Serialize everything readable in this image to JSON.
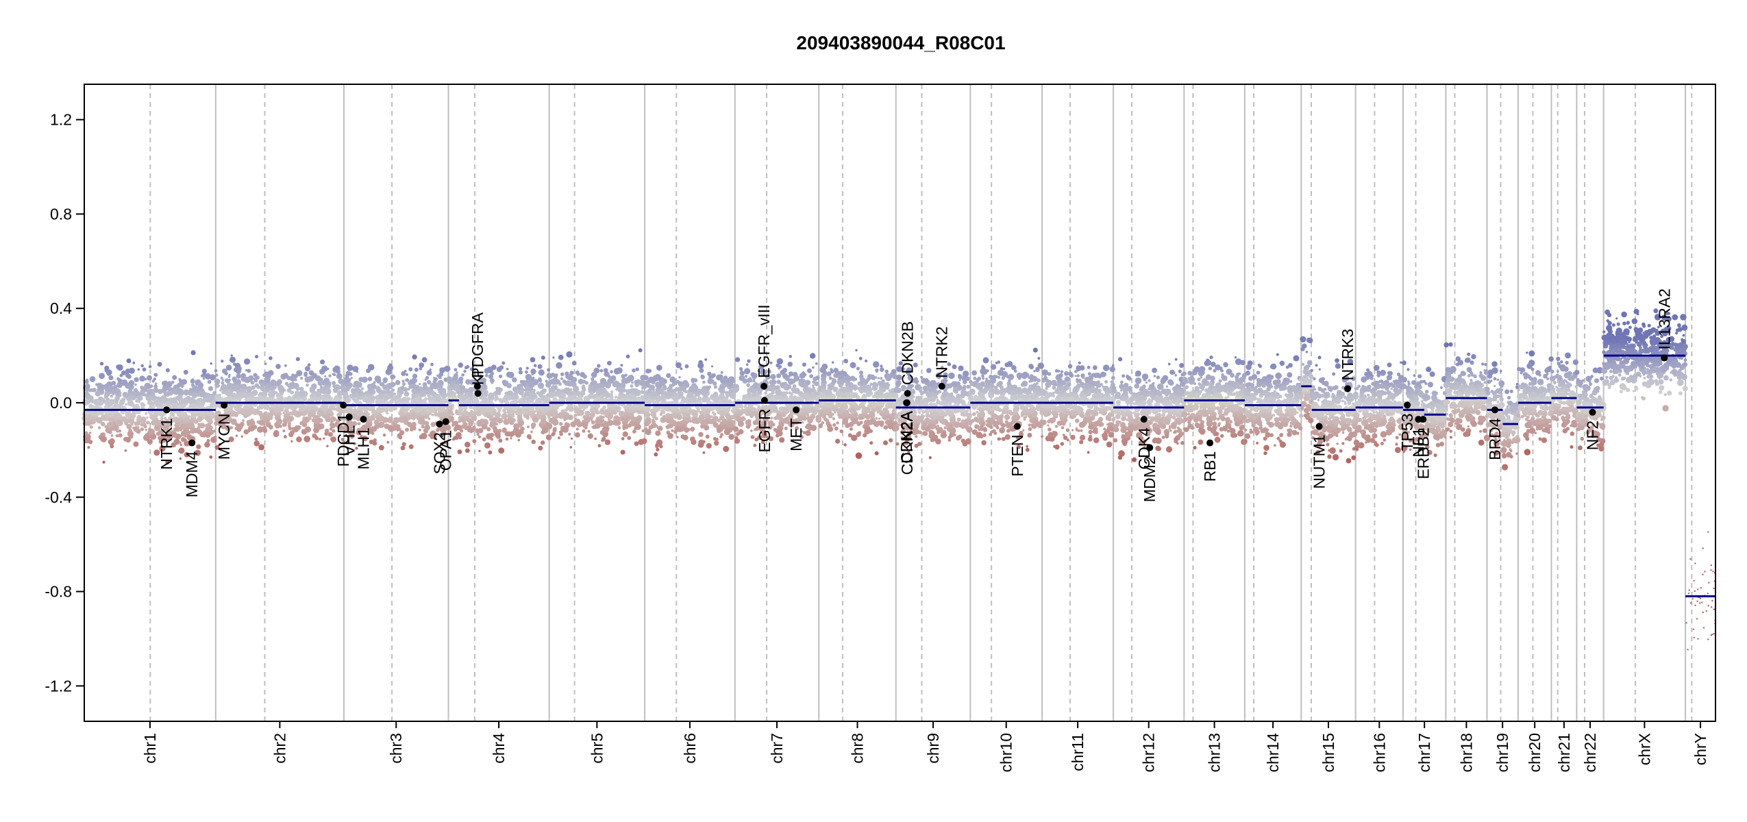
{
  "chart_data": {
    "type": "scatter",
    "title": "209403890044_R08C01",
    "xlabel": "",
    "ylabel": "",
    "ylim": [
      -1.35,
      1.35
    ],
    "y_ticks": [
      -1.2,
      -0.8,
      -0.4,
      0.0,
      0.4,
      0.8,
      1.2
    ],
    "y_tick_labels": [
      "-1.2",
      "-0.8",
      "-0.4",
      "0.0",
      "0.4",
      "0.8",
      "1.2"
    ],
    "colors": {
      "gain": "#6F75B5",
      "loss": "#B0605C",
      "neutral": "#D2D2D2",
      "segment": "#00008B",
      "gene_point": "#000000",
      "chrom_boundary": "#BEBEBE",
      "centromere": "#BEBEBE"
    },
    "chromosomes": [
      {
        "name": "chr1",
        "length": 249,
        "centromere": 125
      },
      {
        "name": "chr2",
        "length": 243,
        "centromere": 93
      },
      {
        "name": "chr3",
        "length": 198,
        "centromere": 91
      },
      {
        "name": "chr4",
        "length": 191,
        "centromere": 50
      },
      {
        "name": "chr5",
        "length": 181,
        "centromere": 48
      },
      {
        "name": "chr6",
        "length": 171,
        "centromere": 60
      },
      {
        "name": "chr7",
        "length": 159,
        "centromere": 60
      },
      {
        "name": "chr8",
        "length": 146,
        "centromere": 45
      },
      {
        "name": "chr9",
        "length": 141,
        "centromere": 49
      },
      {
        "name": "chr10",
        "length": 136,
        "centromere": 40
      },
      {
        "name": "chr11",
        "length": 135,
        "centromere": 53
      },
      {
        "name": "chr12",
        "length": 134,
        "centromere": 35
      },
      {
        "name": "chr13",
        "length": 115,
        "centromere": 17
      },
      {
        "name": "chr14",
        "length": 107,
        "centromere": 17
      },
      {
        "name": "chr15",
        "length": 103,
        "centromere": 19
      },
      {
        "name": "chr16",
        "length": 90,
        "centromere": 36
      },
      {
        "name": "chr17",
        "length": 81,
        "centromere": 24
      },
      {
        "name": "chr18",
        "length": 78,
        "centromere": 17
      },
      {
        "name": "chr19",
        "length": 59,
        "centromere": 26
      },
      {
        "name": "chr20",
        "length": 63,
        "centromere": 28
      },
      {
        "name": "chr21",
        "length": 48,
        "centromere": 12
      },
      {
        "name": "chr22",
        "length": 51,
        "centromere": 15
      },
      {
        "name": "chrX",
        "length": 155,
        "centromere": 60
      },
      {
        "name": "chrY",
        "length": 57,
        "centromere": 12
      }
    ],
    "segments": [
      {
        "chr": "chr1",
        "start": 0,
        "end": 249,
        "value": -0.03
      },
      {
        "chr": "chr2",
        "start": 0,
        "end": 243,
        "value": 0.0
      },
      {
        "chr": "chr3",
        "start": 0,
        "end": 198,
        "value": -0.01
      },
      {
        "chr": "chr4",
        "start": 0,
        "end": 20,
        "value": 0.01
      },
      {
        "chr": "chr4",
        "start": 20,
        "end": 191,
        "value": -0.01
      },
      {
        "chr": "chr5",
        "start": 0,
        "end": 181,
        "value": 0.0
      },
      {
        "chr": "chr6",
        "start": 0,
        "end": 171,
        "value": -0.01
      },
      {
        "chr": "chr7",
        "start": 0,
        "end": 159,
        "value": 0.0
      },
      {
        "chr": "chr8",
        "start": 0,
        "end": 146,
        "value": 0.01
      },
      {
        "chr": "chr9",
        "start": 0,
        "end": 141,
        "value": -0.02
      },
      {
        "chr": "chr10",
        "start": 0,
        "end": 136,
        "value": 0.0
      },
      {
        "chr": "chr11",
        "start": 0,
        "end": 135,
        "value": 0.0
      },
      {
        "chr": "chr12",
        "start": 0,
        "end": 134,
        "value": -0.02
      },
      {
        "chr": "chr13",
        "start": 0,
        "end": 115,
        "value": 0.01
      },
      {
        "chr": "chr14",
        "start": 0,
        "end": 107,
        "value": -0.01
      },
      {
        "chr": "chr15",
        "start": 0,
        "end": 20,
        "value": 0.07
      },
      {
        "chr": "chr15",
        "start": 20,
        "end": 103,
        "value": -0.03
      },
      {
        "chr": "chr16",
        "start": 0,
        "end": 90,
        "value": -0.02
      },
      {
        "chr": "chr17",
        "start": 0,
        "end": 40,
        "value": -0.03
      },
      {
        "chr": "chr17",
        "start": 40,
        "end": 81,
        "value": -0.05
      },
      {
        "chr": "chr18",
        "start": 0,
        "end": 78,
        "value": 0.02
      },
      {
        "chr": "chr19",
        "start": 0,
        "end": 30,
        "value": -0.03
      },
      {
        "chr": "chr19",
        "start": 30,
        "end": 59,
        "value": -0.09
      },
      {
        "chr": "chr20",
        "start": 0,
        "end": 63,
        "value": 0.0
      },
      {
        "chr": "chr21",
        "start": 0,
        "end": 48,
        "value": 0.02
      },
      {
        "chr": "chr22",
        "start": 0,
        "end": 51,
        "value": -0.02
      },
      {
        "chr": "chrX",
        "start": 0,
        "end": 155,
        "value": 0.2
      },
      {
        "chr": "chrY",
        "start": 0,
        "end": 57,
        "value": -0.82
      }
    ],
    "genes": [
      {
        "name": "NTRK1",
        "chr": "chr1",
        "pos": 156,
        "value": -0.03
      },
      {
        "name": "MDM4",
        "chr": "chr1",
        "pos": 204,
        "value": -0.17
      },
      {
        "name": "MYCN",
        "chr": "chr2",
        "pos": 16,
        "value": -0.01
      },
      {
        "name": "PDCD1",
        "chr": "chr2",
        "pos": 242,
        "value": -0.01
      },
      {
        "name": "VHL",
        "chr": "chr3",
        "pos": 10,
        "value": -0.06
      },
      {
        "name": "MLH1",
        "chr": "chr3",
        "pos": 37,
        "value": -0.07
      },
      {
        "name": "SOX2",
        "chr": "chr3",
        "pos": 181,
        "value": -0.09
      },
      {
        "name": "OPA1",
        "chr": "chr3",
        "pos": 193,
        "value": -0.08
      },
      {
        "name": "PDGFRA",
        "chr": "chr4",
        "pos": 55,
        "value": 0.07
      },
      {
        "name": "KIT",
        "chr": "chr4",
        "pos": 56,
        "value": 0.04
      },
      {
        "name": "EGFR_vIII",
        "chr": "chr7",
        "pos": 55,
        "value": 0.07
      },
      {
        "name": "EGFR",
        "chr": "chr7",
        "pos": 56,
        "value": 0.01
      },
      {
        "name": "MET",
        "chr": "chr7",
        "pos": 116,
        "value": -0.03
      },
      {
        "name": "CDKN2B",
        "chr": "chr9",
        "pos": 22,
        "value": 0.04
      },
      {
        "name": "CDKN2A",
        "chr": "chr9",
        "pos": 21,
        "value": 0.0
      },
      {
        "name": "CDK2A",
        "chr": "chr9",
        "pos": 20,
        "value": 0.0
      },
      {
        "name": "NTRK2",
        "chr": "chr9",
        "pos": 87,
        "value": 0.07
      },
      {
        "name": "PTEN",
        "chr": "chr10",
        "pos": 89,
        "value": -0.1
      },
      {
        "name": "CDK4",
        "chr": "chr12",
        "pos": 58,
        "value": -0.07
      },
      {
        "name": "MDM2",
        "chr": "chr12",
        "pos": 69,
        "value": -0.19
      },
      {
        "name": "RB1",
        "chr": "chr13",
        "pos": 49,
        "value": -0.17
      },
      {
        "name": "NUTM1",
        "chr": "chr15",
        "pos": 34,
        "value": -0.1
      },
      {
        "name": "NTRK3",
        "chr": "chr15",
        "pos": 88,
        "value": 0.06
      },
      {
        "name": "TP53",
        "chr": "chr17",
        "pos": 8,
        "value": -0.01
      },
      {
        "name": "NF1",
        "chr": "chr17",
        "pos": 29,
        "value": -0.07
      },
      {
        "name": "ERBB2",
        "chr": "chr17",
        "pos": 38,
        "value": -0.07
      },
      {
        "name": "BRD4",
        "chr": "chr19",
        "pos": 15,
        "value": -0.03
      },
      {
        "name": "NF2",
        "chr": "chr22",
        "pos": 30,
        "value": -0.04
      },
      {
        "name": "IL13RA2",
        "chr": "chrX",
        "pos": 115,
        "value": 0.19
      }
    ],
    "probe_spread": {
      "typical_range": [
        -0.3,
        0.3
      ],
      "chrX_range": [
        0.05,
        0.42
      ],
      "chrY_range": [
        -1.25,
        -0.4
      ]
    }
  }
}
